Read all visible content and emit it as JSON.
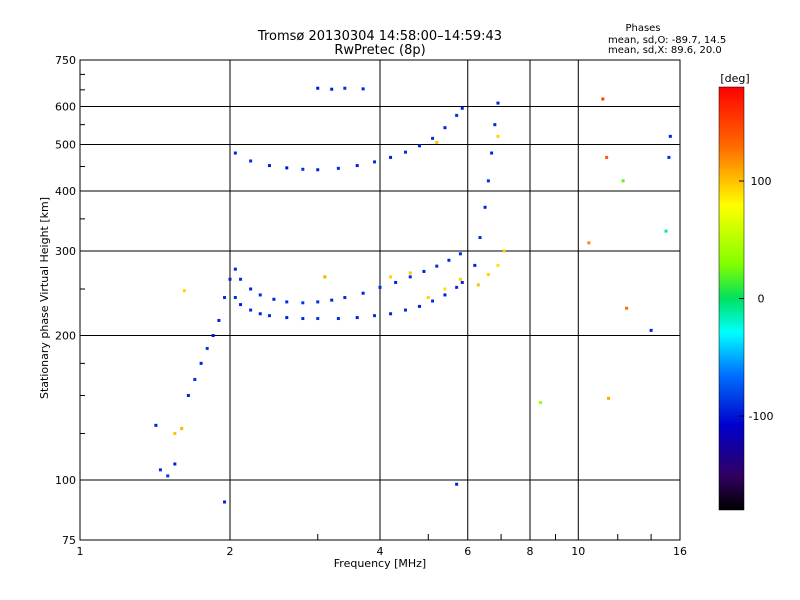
{
  "header": {
    "title_line1": "Tromsø 20130304 14:58:00–14:59:43",
    "title_line2": "RwPretec (8p)",
    "stats_title": "Phases",
    "stats_o": "mean, sd,O: -89.7, 14.5",
    "stats_x": "mean, sd,X: 89.6, 20.0"
  },
  "colorbar": {
    "unit_label": "[deg]",
    "tick_labels": [
      "100",
      "0",
      "-100"
    ],
    "tick_values": [
      100,
      0,
      -100
    ],
    "range": [
      -180,
      180
    ]
  },
  "chart_data": {
    "type": "scatter",
    "title": "Tromsø 20130304 14:58:00–14:59:43 RwPretec (8p)",
    "xlabel": "Frequency [MHz]",
    "ylabel": "Stationary phase Virtual Height [km]",
    "x_scale": "log",
    "y_scale": "log",
    "xlim": [
      1,
      16
    ],
    "ylim": [
      75,
      750
    ],
    "grid": true,
    "x_ticks": [
      1,
      2,
      4,
      6,
      8,
      10,
      16
    ],
    "x_tick_labels": [
      "1",
      "2",
      "4",
      "6",
      "8",
      "10",
      "16"
    ],
    "y_ticks": [
      75,
      100,
      200,
      300,
      400,
      500,
      600,
      750
    ],
    "y_tick_labels": [
      "75",
      "100",
      "200",
      "300",
      "400",
      "500",
      "600",
      "750"
    ],
    "series": [
      {
        "points": [
          [
            1.42,
            130,
            -95
          ],
          [
            1.45,
            105,
            -90
          ],
          [
            1.5,
            102,
            -85
          ],
          [
            1.55,
            108,
            -95
          ],
          [
            1.6,
            128,
            105
          ],
          [
            1.65,
            150,
            -95
          ],
          [
            1.7,
            162,
            -90
          ],
          [
            1.75,
            175,
            -95
          ],
          [
            1.8,
            188,
            -85
          ],
          [
            1.85,
            200,
            -100
          ],
          [
            1.9,
            215,
            -95
          ],
          [
            1.95,
            240,
            -90
          ],
          [
            2.0,
            262,
            -95
          ],
          [
            2.05,
            240,
            -90
          ],
          [
            2.1,
            232,
            -95
          ],
          [
            2.2,
            226,
            -90
          ],
          [
            2.3,
            222,
            -95
          ],
          [
            2.4,
            220,
            -90
          ],
          [
            2.6,
            218,
            -95
          ],
          [
            2.8,
            217,
            -90
          ],
          [
            3.0,
            217,
            -85
          ],
          [
            3.3,
            217,
            -90
          ],
          [
            3.6,
            218,
            -95
          ],
          [
            3.9,
            220,
            -90
          ],
          [
            4.2,
            222,
            -95
          ],
          [
            4.5,
            226,
            -90
          ],
          [
            4.8,
            230,
            -95
          ],
          [
            5.1,
            236,
            -90
          ],
          [
            5.4,
            243,
            -95
          ],
          [
            5.7,
            252,
            -90
          ],
          [
            5.85,
            258,
            -95
          ]
        ]
      },
      {
        "points": [
          [
            2.05,
            275,
            -95
          ],
          [
            2.1,
            262,
            -90
          ],
          [
            2.2,
            250,
            -95
          ],
          [
            2.3,
            243,
            -90
          ],
          [
            2.45,
            238,
            -95
          ],
          [
            2.6,
            235,
            -90
          ],
          [
            2.8,
            234,
            -85
          ],
          [
            3.0,
            235,
            -90
          ],
          [
            3.2,
            237,
            -95
          ],
          [
            3.4,
            240,
            -90
          ],
          [
            3.7,
            245,
            -95
          ],
          [
            4.0,
            252,
            -90
          ],
          [
            4.3,
            258,
            -95
          ],
          [
            4.6,
            265,
            -90
          ],
          [
            4.9,
            272,
            -95
          ],
          [
            5.2,
            279,
            -90
          ],
          [
            5.5,
            287,
            -95
          ],
          [
            5.8,
            296,
            -90
          ]
        ]
      },
      {
        "points": [
          [
            2.05,
            480,
            -95
          ],
          [
            2.2,
            462,
            -90
          ],
          [
            2.4,
            452,
            -95
          ],
          [
            2.6,
            447,
            -100
          ],
          [
            2.8,
            444,
            -90
          ],
          [
            3.0,
            443,
            -95
          ],
          [
            3.3,
            446,
            -90
          ],
          [
            3.6,
            452,
            -95
          ],
          [
            3.9,
            460,
            -90
          ],
          [
            4.2,
            470,
            -95
          ],
          [
            4.5,
            482,
            -90
          ],
          [
            4.8,
            497,
            -95
          ],
          [
            5.1,
            515,
            -90
          ],
          [
            5.4,
            542,
            -95
          ],
          [
            5.7,
            575,
            -90
          ],
          [
            5.85,
            595,
            -95
          ]
        ]
      },
      {
        "points": [
          [
            6.2,
            280,
            -95
          ],
          [
            6.35,
            320,
            -90
          ],
          [
            6.5,
            370,
            -95
          ],
          [
            6.6,
            420,
            -90
          ],
          [
            6.7,
            480,
            -95
          ],
          [
            6.8,
            550,
            -90
          ],
          [
            6.9,
            610,
            -95
          ]
        ]
      },
      {
        "points": [
          [
            4.2,
            265,
            95
          ],
          [
            4.6,
            270,
            100
          ],
          [
            5.0,
            240,
            95
          ],
          [
            5.4,
            250,
            90
          ],
          [
            5.8,
            262,
            95
          ],
          [
            6.3,
            255,
            100
          ],
          [
            6.6,
            268,
            95
          ],
          [
            6.9,
            280,
            90
          ],
          [
            7.1,
            300,
            95
          ],
          [
            5.2,
            505,
            100
          ],
          [
            6.9,
            520,
            95
          ],
          [
            3.1,
            265,
            110
          ],
          [
            1.62,
            248,
            95
          ],
          [
            1.55,
            125,
            100
          ]
        ]
      },
      {
        "points": [
          [
            3.2,
            652,
            -95
          ],
          [
            3.4,
            655,
            -90
          ],
          [
            3.7,
            653,
            -95
          ],
          [
            3.0,
            655,
            -100
          ],
          [
            5.7,
            98,
            -95
          ],
          [
            14.0,
            205,
            -95
          ],
          [
            15.3,
            520,
            -95
          ],
          [
            15.2,
            470,
            -90
          ],
          [
            1.95,
            90,
            -95
          ],
          [
            12.5,
            228,
            130
          ],
          [
            11.2,
            622,
            150
          ],
          [
            11.4,
            470,
            140
          ],
          [
            10.5,
            312,
            120
          ],
          [
            8.4,
            145,
            40
          ],
          [
            11.5,
            148,
            110
          ],
          [
            15.0,
            330,
            -10
          ],
          [
            12.3,
            420,
            20
          ]
        ]
      }
    ]
  }
}
